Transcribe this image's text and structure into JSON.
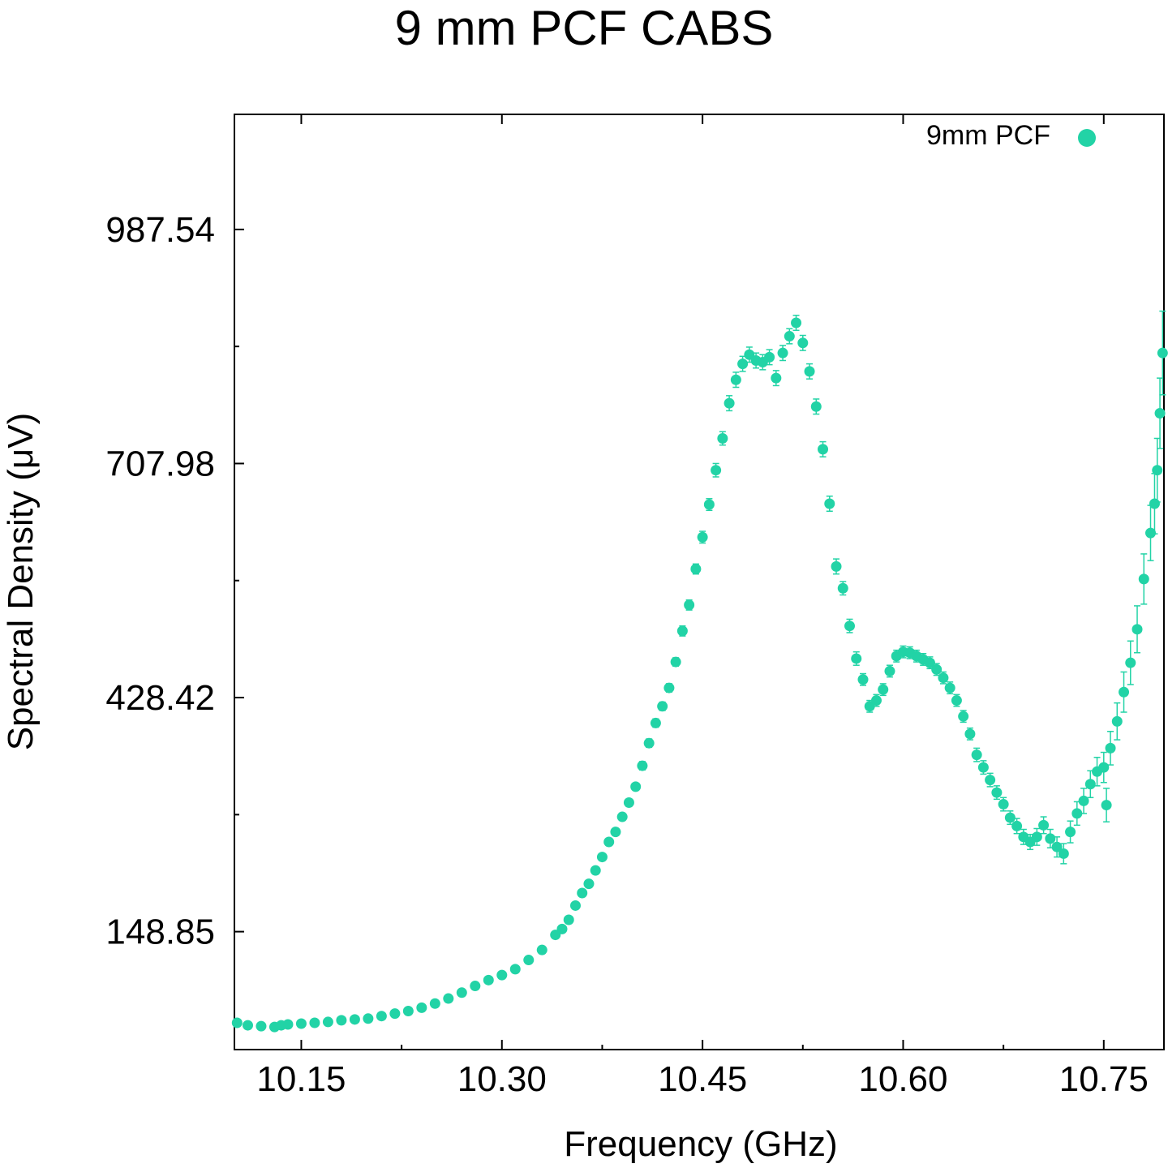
{
  "chart_data": {
    "type": "scatter",
    "title": "9 mm PCF CABS",
    "xlabel": "Frequency (GHz)",
    "ylabel": "Spectral Density (μV)",
    "xlim": [
      10.1,
      10.795
    ],
    "ylim": [
      8,
      1125
    ],
    "x_ticks": [
      {
        "value": 10.15,
        "label": "10.15"
      },
      {
        "value": 10.3,
        "label": "10.30"
      },
      {
        "value": 10.45,
        "label": "10.45"
      },
      {
        "value": 10.6,
        "label": "10.60"
      },
      {
        "value": 10.75,
        "label": "10.75"
      }
    ],
    "x_minor_ticks": [
      10.225,
      10.375,
      10.525,
      10.675
    ],
    "y_ticks": [
      {
        "value": 148.85,
        "label": "148.85"
      },
      {
        "value": 428.42,
        "label": "428.42"
      },
      {
        "value": 707.98,
        "label": "707.98"
      },
      {
        "value": 987.54,
        "label": "987.54"
      }
    ],
    "y_minor_ticks": [
      288.6,
      568.2,
      847.8
    ],
    "grid": false,
    "legend_position": "top-right",
    "marker_color": "#22d3a6",
    "series": [
      {
        "name": "9mm PCF",
        "color": "#22d3a6",
        "error_bars": true,
        "points": [
          [
            10.102,
            40,
            3
          ],
          [
            10.11,
            37,
            3
          ],
          [
            10.12,
            36,
            3
          ],
          [
            10.13,
            35,
            3
          ],
          [
            10.135,
            37,
            3
          ],
          [
            10.14,
            38,
            3
          ],
          [
            10.15,
            39,
            3
          ],
          [
            10.16,
            40,
            3
          ],
          [
            10.17,
            41,
            3
          ],
          [
            10.18,
            43,
            3
          ],
          [
            10.19,
            44,
            3
          ],
          [
            10.2,
            45,
            3
          ],
          [
            10.21,
            48,
            3
          ],
          [
            10.22,
            51,
            3
          ],
          [
            10.23,
            54,
            3
          ],
          [
            10.24,
            58,
            3
          ],
          [
            10.25,
            63,
            3
          ],
          [
            10.26,
            69,
            3
          ],
          [
            10.27,
            76,
            3
          ],
          [
            10.28,
            84,
            3
          ],
          [
            10.29,
            91,
            3
          ],
          [
            10.3,
            97,
            3
          ],
          [
            10.31,
            104,
            4
          ],
          [
            10.32,
            115,
            4
          ],
          [
            10.33,
            127,
            4
          ],
          [
            10.34,
            145,
            4
          ],
          [
            10.345,
            152,
            4
          ],
          [
            10.35,
            163,
            4
          ],
          [
            10.355,
            180,
            4
          ],
          [
            10.36,
            195,
            4
          ],
          [
            10.365,
            206,
            4
          ],
          [
            10.37,
            222,
            4
          ],
          [
            10.375,
            238,
            4
          ],
          [
            10.38,
            256,
            4
          ],
          [
            10.385,
            268,
            4
          ],
          [
            10.39,
            286,
            4
          ],
          [
            10.395,
            303,
            4
          ],
          [
            10.4,
            322,
            4
          ],
          [
            10.405,
            347,
            5
          ],
          [
            10.41,
            374,
            5
          ],
          [
            10.415,
            398,
            5
          ],
          [
            10.42,
            418,
            5
          ],
          [
            10.425,
            440,
            5
          ],
          [
            10.43,
            471,
            5
          ],
          [
            10.435,
            508,
            6
          ],
          [
            10.44,
            539,
            6
          ],
          [
            10.445,
            582,
            6
          ],
          [
            10.45,
            620,
            7
          ],
          [
            10.455,
            659,
            7
          ],
          [
            10.46,
            700,
            8
          ],
          [
            10.465,
            738,
            8
          ],
          [
            10.47,
            780,
            9
          ],
          [
            10.475,
            808,
            9
          ],
          [
            10.48,
            827,
            9
          ],
          [
            10.485,
            838,
            9
          ],
          [
            10.49,
            831,
            9
          ],
          [
            10.495,
            829,
            9
          ],
          [
            10.5,
            835,
            9
          ],
          [
            10.505,
            810,
            9
          ],
          [
            10.51,
            840,
            9
          ],
          [
            10.515,
            860,
            9
          ],
          [
            10.52,
            876,
            9
          ],
          [
            10.525,
            852,
            9
          ],
          [
            10.53,
            818,
            9
          ],
          [
            10.535,
            776,
            9
          ],
          [
            10.54,
            725,
            9
          ],
          [
            10.545,
            660,
            9
          ],
          [
            10.55,
            585,
            9
          ],
          [
            10.555,
            559,
            8
          ],
          [
            10.56,
            514,
            8
          ],
          [
            10.565,
            475,
            8
          ],
          [
            10.57,
            450,
            7
          ],
          [
            10.575,
            418,
            7
          ],
          [
            10.58,
            425,
            7
          ],
          [
            10.585,
            438,
            7
          ],
          [
            10.59,
            460,
            7
          ],
          [
            10.595,
            478,
            7
          ],
          [
            10.6,
            483,
            7
          ],
          [
            10.605,
            482,
            7
          ],
          [
            10.61,
            478,
            7
          ],
          [
            10.615,
            474,
            7
          ],
          [
            10.62,
            470,
            7
          ],
          [
            10.625,
            462,
            7
          ],
          [
            10.63,
            452,
            7
          ],
          [
            10.635,
            440,
            7
          ],
          [
            10.64,
            425,
            7
          ],
          [
            10.645,
            406,
            7
          ],
          [
            10.65,
            385,
            7
          ],
          [
            10.655,
            360,
            8
          ],
          [
            10.66,
            345,
            8
          ],
          [
            10.665,
            330,
            8
          ],
          [
            10.67,
            315,
            8
          ],
          [
            10.675,
            301,
            8
          ],
          [
            10.68,
            285,
            8
          ],
          [
            10.685,
            275,
            9
          ],
          [
            10.69,
            262,
            9
          ],
          [
            10.695,
            256,
            9
          ],
          [
            10.7,
            262,
            10
          ],
          [
            10.705,
            276,
            10
          ],
          [
            10.71,
            260,
            11
          ],
          [
            10.715,
            250,
            12
          ],
          [
            10.72,
            242,
            12
          ],
          [
            10.725,
            268,
            13
          ],
          [
            10.73,
            290,
            14
          ],
          [
            10.735,
            305,
            15
          ],
          [
            10.74,
            325,
            16
          ],
          [
            10.745,
            340,
            17
          ],
          [
            10.75,
            345,
            18
          ],
          [
            10.752,
            300,
            20
          ],
          [
            10.755,
            368,
            20
          ],
          [
            10.76,
            400,
            22
          ],
          [
            10.765,
            435,
            24
          ],
          [
            10.77,
            470,
            26
          ],
          [
            10.775,
            510,
            28
          ],
          [
            10.78,
            570,
            30
          ],
          [
            10.785,
            625,
            33
          ],
          [
            10.788,
            660,
            36
          ],
          [
            10.79,
            700,
            38
          ],
          [
            10.792,
            768,
            42
          ],
          [
            10.794,
            840,
            50
          ]
        ]
      }
    ]
  }
}
